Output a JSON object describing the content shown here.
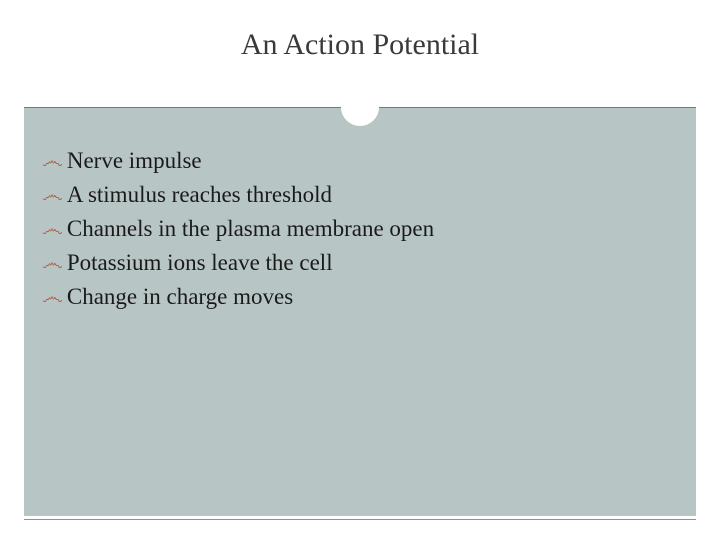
{
  "slide": {
    "title": "An Action Potential",
    "title_color": "#3a3a3a",
    "title_fontsize": 30,
    "background_color": "#ffffff",
    "content_background": "#b8c5c5",
    "divider_line_color": "#7a7a7a",
    "circle_border_color": "#ffffff",
    "circle_fill": "#b8c5c5",
    "bullet_color": "#b85c3e",
    "bullet_glyph": "་∼",
    "text_color": "#1a1a1a",
    "body_fontsize": 23,
    "bullets": [
      "Nerve impulse",
      "A stimulus reaches threshold",
      "Channels in the plasma membrane open",
      "Potassium ions leave the cell",
      "Change in charge moves"
    ]
  }
}
